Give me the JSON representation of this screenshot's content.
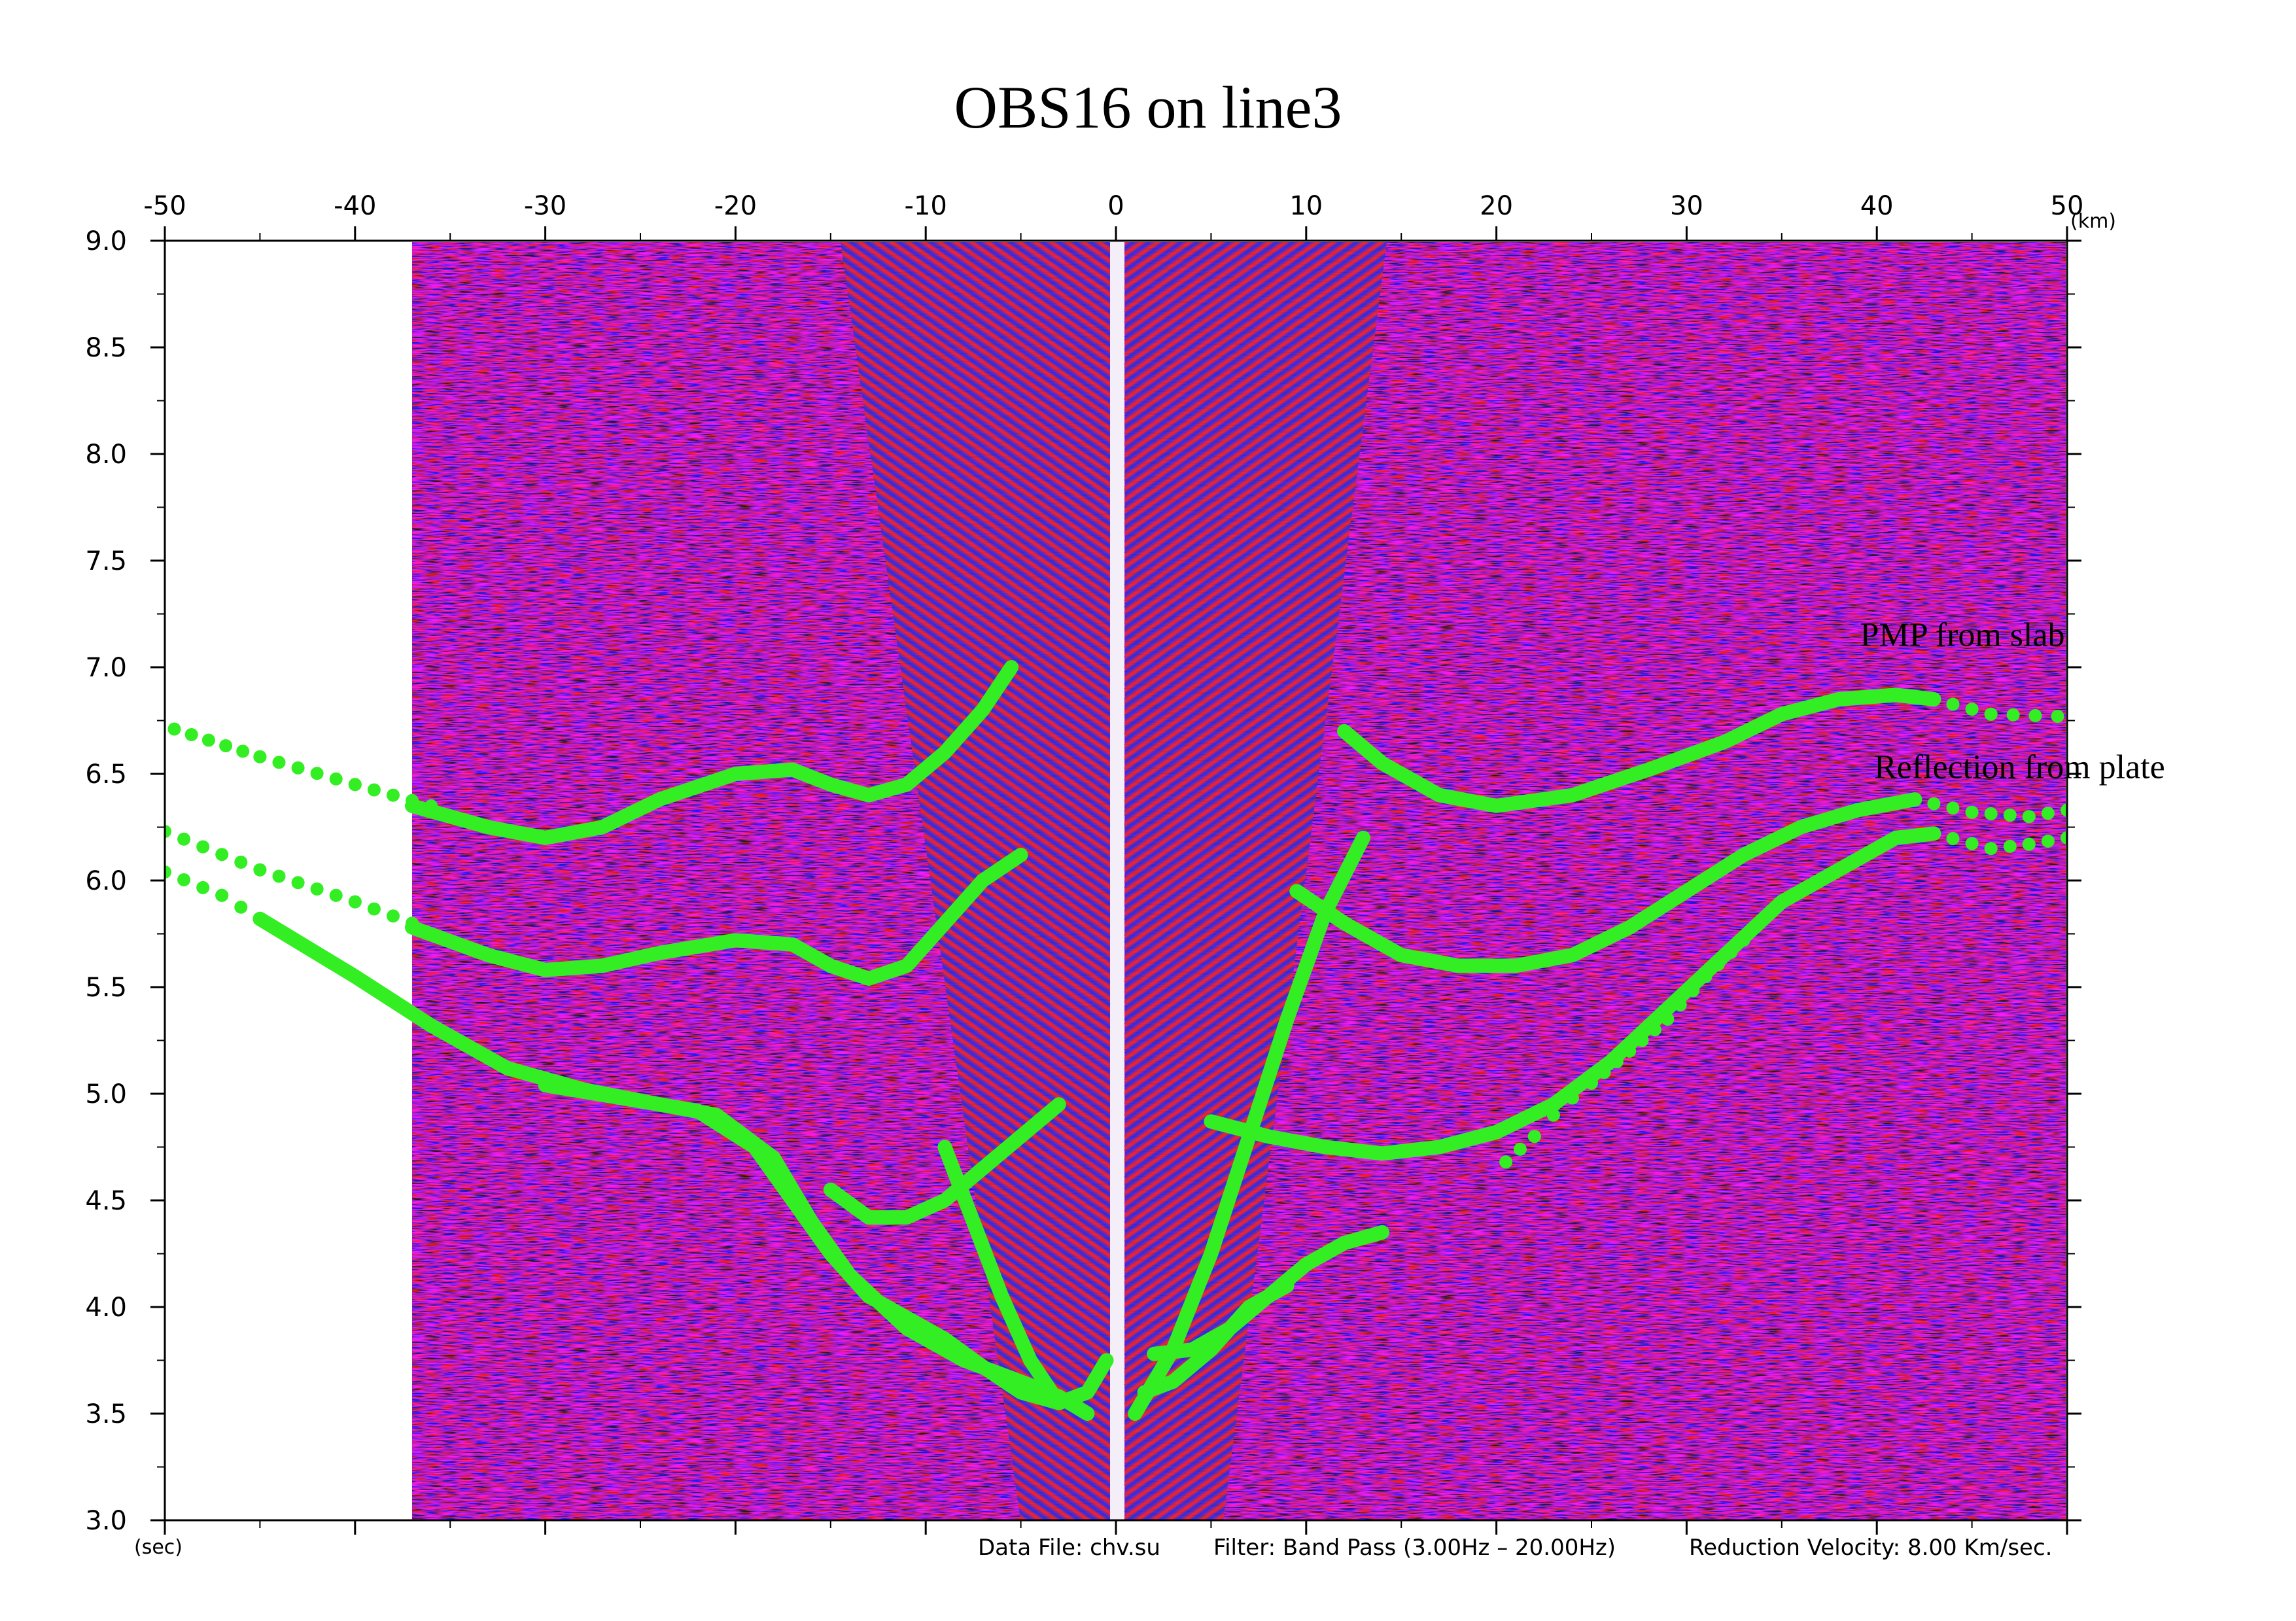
{
  "chart_data": {
    "type": "scatter",
    "title": "OBS16 on line3",
    "x_unit": "(km)",
    "y_unit": "(sec)",
    "xlim": [
      -50,
      50
    ],
    "ylim": [
      3.0,
      9.0
    ],
    "x_ticks": [
      "-50",
      "-40",
      "-30",
      "-20",
      "-10",
      "0",
      "10",
      "20",
      "30",
      "40",
      "50"
    ],
    "y_ticks": [
      "3.0",
      "3.5",
      "4.0",
      "4.5",
      "5.0",
      "5.5",
      "6.0",
      "6.5",
      "7.0",
      "7.5",
      "8.0",
      "8.5",
      "9.0"
    ],
    "grid": false,
    "footer": {
      "data_file": "Data File: chv.su",
      "filter": "Filter: Band Pass (3.00Hz – 20.00Hz)",
      "reduction": "Reduction Velocity: 8.00 Km/sec."
    },
    "annotations": [
      {
        "text": "PMP from slab",
        "x": 44.5,
        "y": 7.1
      },
      {
        "text": "Reflection from plate",
        "x": 47.5,
        "y": 6.48
      }
    ],
    "colors": {
      "picks": "#33ee22",
      "trace_red": "#e8242c",
      "trace_blue": "#2a2ee0",
      "background_wash": "#c8b4d8"
    },
    "series": [
      {
        "style": "dotted",
        "points": [
          [
            -49.5,
            6.71
          ],
          [
            -45,
            6.58
          ],
          [
            -40,
            6.45
          ],
          [
            -36,
            6.35
          ]
        ]
      },
      {
        "style": "line",
        "points": [
          [
            -37,
            6.35
          ],
          [
            -33,
            6.25
          ],
          [
            -30,
            6.2
          ],
          [
            -27,
            6.25
          ],
          [
            -24,
            6.38
          ],
          [
            -20,
            6.5
          ],
          [
            -17,
            6.52
          ],
          [
            -15,
            6.45
          ],
          [
            -13,
            6.4
          ],
          [
            -11,
            6.45
          ],
          [
            -9,
            6.6
          ],
          [
            -7,
            6.8
          ],
          [
            -5.5,
            7.0
          ]
        ]
      },
      {
        "style": "dotted",
        "points": [
          [
            -50,
            6.23
          ],
          [
            -45,
            6.05
          ],
          [
            -40,
            5.9
          ],
          [
            -37,
            5.8
          ]
        ]
      },
      {
        "style": "line",
        "points": [
          [
            -37,
            5.78
          ],
          [
            -33,
            5.65
          ],
          [
            -30,
            5.58
          ],
          [
            -27,
            5.6
          ],
          [
            -24,
            5.66
          ],
          [
            -20,
            5.72
          ],
          [
            -17,
            5.7
          ],
          [
            -15,
            5.6
          ],
          [
            -13,
            5.54
          ],
          [
            -11,
            5.6
          ],
          [
            -9,
            5.8
          ],
          [
            -7,
            6.0
          ],
          [
            -5,
            6.12
          ]
        ]
      },
      {
        "style": "dotted",
        "points": [
          [
            -50,
            6.04
          ],
          [
            -47,
            5.93
          ],
          [
            -45,
            5.82
          ]
        ]
      },
      {
        "style": "line",
        "points": [
          [
            -45,
            5.82
          ],
          [
            -40,
            5.55
          ],
          [
            -36,
            5.32
          ],
          [
            -32,
            5.12
          ],
          [
            -28,
            5.02
          ],
          [
            -24,
            4.95
          ],
          [
            -21,
            4.9
          ],
          [
            -18,
            4.7
          ],
          [
            -16,
            4.4
          ],
          [
            -14,
            4.15
          ],
          [
            -11,
            3.9
          ],
          [
            -8,
            3.75
          ],
          [
            -5,
            3.65
          ],
          [
            -3,
            3.58
          ],
          [
            -1.5,
            3.5
          ]
        ]
      },
      {
        "style": "line",
        "points": [
          [
            -30,
            5.04
          ],
          [
            -26,
            4.98
          ],
          [
            -22,
            4.92
          ],
          [
            -19,
            4.75
          ],
          [
            -17,
            4.5
          ],
          [
            -15,
            4.25
          ],
          [
            -13,
            4.05
          ],
          [
            -11,
            3.95
          ],
          [
            -9,
            3.85
          ],
          [
            -7,
            3.72
          ],
          [
            -5,
            3.6
          ],
          [
            -3,
            3.55
          ],
          [
            -1.5,
            3.6
          ],
          [
            -0.5,
            3.75
          ]
        ]
      },
      {
        "style": "line",
        "points": [
          [
            -15,
            4.55
          ],
          [
            -13,
            4.42
          ],
          [
            -11,
            4.42
          ],
          [
            -9,
            4.5
          ],
          [
            -7,
            4.65
          ],
          [
            -5,
            4.8
          ],
          [
            -3,
            4.95
          ]
        ]
      },
      {
        "style": "line",
        "points": [
          [
            -9,
            4.75
          ],
          [
            -7.5,
            4.4
          ],
          [
            -6,
            4.05
          ],
          [
            -4.5,
            3.75
          ],
          [
            -3,
            3.55
          ]
        ]
      },
      {
        "style": "line",
        "points": [
          [
            12,
            6.7
          ],
          [
            14,
            6.55
          ],
          [
            17,
            6.4
          ],
          [
            20,
            6.35
          ],
          [
            24,
            6.4
          ],
          [
            28,
            6.52
          ],
          [
            32,
            6.65
          ],
          [
            35,
            6.78
          ],
          [
            38,
            6.85
          ],
          [
            41,
            6.87
          ],
          [
            43,
            6.85
          ]
        ]
      },
      {
        "style": "dotted",
        "points": [
          [
            43,
            6.85
          ],
          [
            46,
            6.78
          ],
          [
            49.5,
            6.77
          ]
        ]
      },
      {
        "style": "line",
        "points": [
          [
            9.5,
            5.95
          ],
          [
            12,
            5.8
          ],
          [
            15,
            5.65
          ],
          [
            18,
            5.6
          ],
          [
            21,
            5.6
          ],
          [
            24,
            5.65
          ],
          [
            27,
            5.78
          ],
          [
            30,
            5.95
          ],
          [
            33,
            6.12
          ],
          [
            36,
            6.25
          ],
          [
            39,
            6.33
          ],
          [
            42,
            6.38
          ]
        ]
      },
      {
        "style": "dotted",
        "points": [
          [
            42,
            6.38
          ],
          [
            45,
            6.32
          ],
          [
            48,
            6.3
          ],
          [
            50,
            6.33
          ]
        ]
      },
      {
        "style": "line",
        "points": [
          [
            5,
            4.87
          ],
          [
            8,
            4.8
          ],
          [
            11,
            4.75
          ],
          [
            14,
            4.72
          ],
          [
            17,
            4.75
          ],
          [
            20,
            4.82
          ],
          [
            23,
            4.95
          ],
          [
            26,
            5.15
          ],
          [
            29,
            5.4
          ],
          [
            32,
            5.65
          ],
          [
            35,
            5.9
          ],
          [
            38,
            6.05
          ],
          [
            41,
            6.2
          ],
          [
            43,
            6.22
          ]
        ]
      },
      {
        "style": "dotted",
        "points": [
          [
            43,
            6.22
          ],
          [
            46,
            6.15
          ],
          [
            48,
            6.17
          ],
          [
            50,
            6.2
          ]
        ]
      },
      {
        "style": "line",
        "points": [
          [
            2,
            3.78
          ],
          [
            4,
            3.8
          ],
          [
            6,
            3.9
          ],
          [
            8,
            4.05
          ],
          [
            10,
            4.2
          ],
          [
            12,
            4.3
          ],
          [
            14,
            4.35
          ]
        ]
      },
      {
        "style": "dotted",
        "points": [
          [
            20.5,
            4.68
          ],
          [
            22,
            4.8
          ],
          [
            23,
            4.9
          ],
          [
            24,
            4.98
          ],
          [
            25,
            5.05
          ],
          [
            27,
            5.2
          ],
          [
            29,
            5.35
          ],
          [
            31,
            5.55
          ],
          [
            33,
            5.72
          ]
        ]
      },
      {
        "style": "line",
        "points": [
          [
            1,
            3.5
          ],
          [
            3,
            3.8
          ],
          [
            5,
            4.25
          ],
          [
            7,
            4.8
          ],
          [
            9,
            5.35
          ],
          [
            11,
            5.85
          ],
          [
            13,
            6.2
          ]
        ]
      },
      {
        "style": "line",
        "points": [
          [
            1.5,
            3.6
          ],
          [
            3,
            3.65
          ],
          [
            5,
            3.8
          ],
          [
            7,
            4.0
          ],
          [
            9,
            4.1
          ]
        ]
      }
    ]
  }
}
